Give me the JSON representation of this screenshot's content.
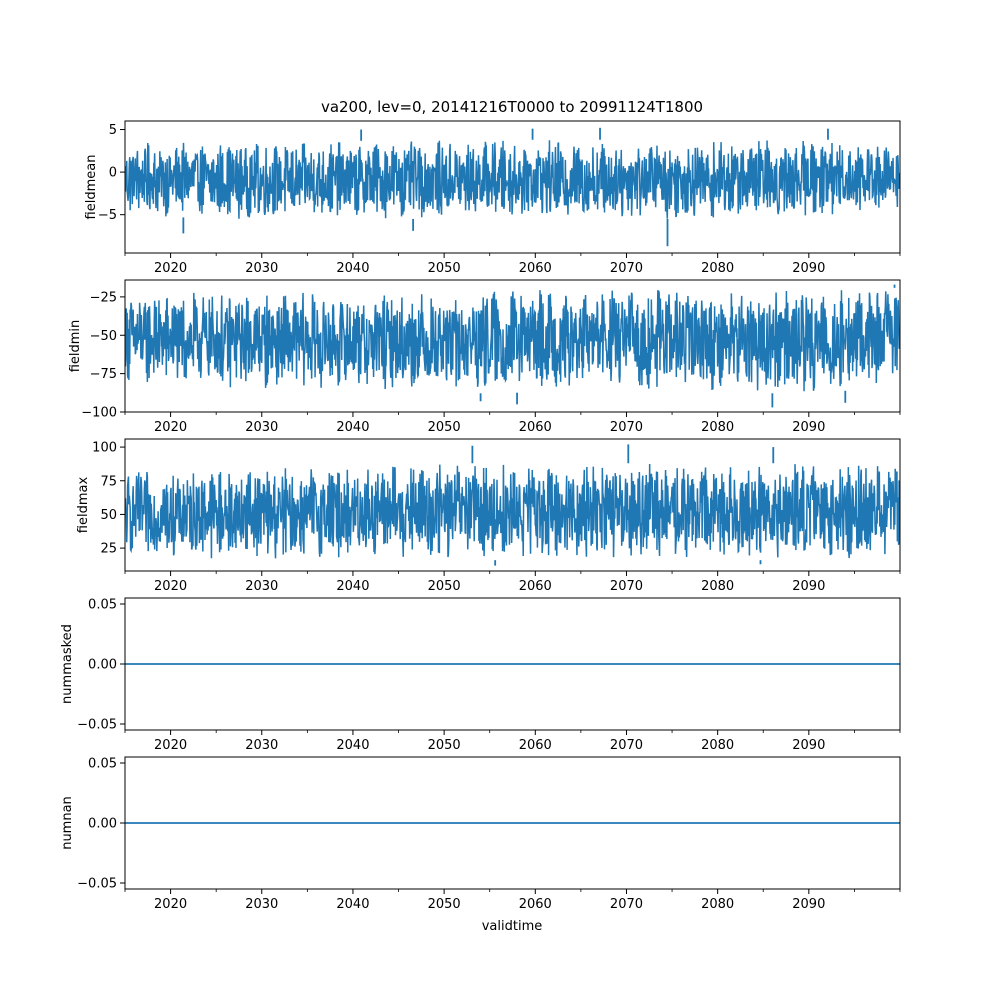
{
  "figure": {
    "title": "va200, lev=0, 20141216T0000 to 20991124T1800",
    "xlabel": "validtime",
    "line_color": "#1f77b4"
  },
  "chart_data": [
    {
      "type": "line",
      "ylabel": "fieldmean",
      "xlim": [
        2015.0,
        2100.0
      ],
      "ylim": [
        -9.5,
        6.0
      ],
      "x_ticks": [
        2020,
        2030,
        2040,
        2050,
        2060,
        2070,
        2080,
        2090
      ],
      "x_tick_labels": [
        "2020",
        "2030",
        "2040",
        "2050",
        "2060",
        "2070",
        "2080",
        "2090"
      ],
      "y_ticks": [
        -5,
        0,
        5
      ],
      "y_tick_labels": [
        "−5",
        "0",
        "5"
      ],
      "series": [
        {
          "x": [
            2015.0,
            2025.0,
            2035.0,
            2045.0,
            2055.0,
            2065.0,
            2075.0,
            2085.0,
            2095.0,
            2099.9
          ],
          "low": [
            -5.0,
            -5.5,
            -5.5,
            -5.5,
            -5.5,
            -5.5,
            -5.5,
            -5.5,
            -5.0,
            -4.5
          ],
          "high": [
            3.5,
            3.5,
            3.5,
            3.8,
            3.8,
            3.8,
            3.8,
            3.8,
            3.8,
            3.0
          ],
          "spikes": [
            {
              "x": 2021.4,
              "y": -7.2
            },
            {
              "x": 2040.9,
              "y": 5.0
            },
            {
              "x": 2046.6,
              "y": -6.9
            },
            {
              "x": 2059.7,
              "y": 5.1
            },
            {
              "x": 2067.1,
              "y": 5.2
            },
            {
              "x": 2074.5,
              "y": -8.7
            },
            {
              "x": 2092.1,
              "y": 5.1
            }
          ]
        }
      ]
    },
    {
      "type": "line",
      "ylabel": "fieldmin",
      "xlim": [
        2015.0,
        2100.0
      ],
      "ylim": [
        -100.0,
        -14.0
      ],
      "x_ticks": [
        2020,
        2030,
        2040,
        2050,
        2060,
        2070,
        2080,
        2090
      ],
      "x_tick_labels": [
        "2020",
        "2030",
        "2040",
        "2050",
        "2060",
        "2070",
        "2080",
        "2090"
      ],
      "y_ticks": [
        -100,
        -75,
        -50,
        -25
      ],
      "y_tick_labels": [
        "−100",
        "−75",
        "−50",
        "−25"
      ],
      "series": [
        {
          "x": [
            2015.0,
            2025.0,
            2035.0,
            2045.0,
            2055.0,
            2065.0,
            2075.0,
            2085.0,
            2095.0,
            2099.9
          ],
          "low": [
            -82.0,
            -85.0,
            -85.0,
            -86.0,
            -88.0,
            -86.0,
            -86.0,
            -88.0,
            -86.0,
            -80.0
          ],
          "high": [
            -22.0,
            -22.0,
            -22.0,
            -22.0,
            -20.0,
            -20.0,
            -20.0,
            -20.0,
            -20.0,
            -19.0
          ],
          "spikes": [
            {
              "x": 2054.0,
              "y": -93.0
            },
            {
              "x": 2058.0,
              "y": -95.0
            },
            {
              "x": 2086.0,
              "y": -97.0
            },
            {
              "x": 2094.0,
              "y": -94.0
            },
            {
              "x": 2099.4,
              "y": -17.0
            }
          ]
        }
      ]
    },
    {
      "type": "line",
      "ylabel": "fieldmax",
      "xlim": [
        2015.0,
        2100.0
      ],
      "ylim": [
        8.0,
        106.0
      ],
      "x_ticks": [
        2020,
        2030,
        2040,
        2050,
        2060,
        2070,
        2080,
        2090
      ],
      "x_tick_labels": [
        "2020",
        "2030",
        "2040",
        "2050",
        "2060",
        "2070",
        "2080",
        "2090"
      ],
      "y_ticks": [
        25,
        50,
        75,
        100
      ],
      "y_tick_labels": [
        "25",
        "50",
        "75",
        "100"
      ],
      "series": [
        {
          "x": [
            2015.0,
            2025.0,
            2035.0,
            2045.0,
            2055.0,
            2065.0,
            2075.0,
            2085.0,
            2095.0,
            2099.9
          ],
          "low": [
            18.0,
            17.0,
            17.0,
            17.0,
            16.0,
            17.0,
            17.0,
            16.0,
            17.0,
            18.0
          ],
          "high": [
            82.0,
            85.0,
            85.0,
            88.0,
            88.0,
            88.0,
            88.0,
            88.0,
            88.0,
            90.0
          ],
          "spikes": [
            {
              "x": 2053.1,
              "y": 101.0
            },
            {
              "x": 2070.2,
              "y": 102.0
            },
            {
              "x": 2086.1,
              "y": 100.0
            },
            {
              "x": 2055.6,
              "y": 12.0
            },
            {
              "x": 2084.7,
              "y": 13.0
            }
          ]
        }
      ]
    },
    {
      "type": "line",
      "ylabel": "nummasked",
      "xlim": [
        2015.0,
        2100.0
      ],
      "ylim": [
        -0.055,
        0.055
      ],
      "x_ticks": [
        2020,
        2030,
        2040,
        2050,
        2060,
        2070,
        2080,
        2090
      ],
      "x_tick_labels": [
        "2020",
        "2030",
        "2040",
        "2050",
        "2060",
        "2070",
        "2080",
        "2090"
      ],
      "y_ticks": [
        -0.05,
        0.0,
        0.05
      ],
      "y_tick_labels": [
        "−0.05",
        "0.00",
        "0.05"
      ],
      "series": [
        {
          "x": [
            2015.0,
            2100.0
          ],
          "y": [
            0.0,
            0.0
          ]
        }
      ]
    },
    {
      "type": "line",
      "ylabel": "numnan",
      "xlim": [
        2015.0,
        2100.0
      ],
      "ylim": [
        -0.055,
        0.055
      ],
      "x_ticks": [
        2020,
        2030,
        2040,
        2050,
        2060,
        2070,
        2080,
        2090
      ],
      "x_tick_labels": [
        "2020",
        "2030",
        "2040",
        "2050",
        "2060",
        "2070",
        "2080",
        "2090"
      ],
      "y_ticks": [
        -0.05,
        0.0,
        0.05
      ],
      "y_tick_labels": [
        "−0.05",
        "0.00",
        "0.05"
      ],
      "series": [
        {
          "x": [
            2015.0,
            2100.0
          ],
          "y": [
            0.0,
            0.0
          ]
        }
      ]
    }
  ]
}
